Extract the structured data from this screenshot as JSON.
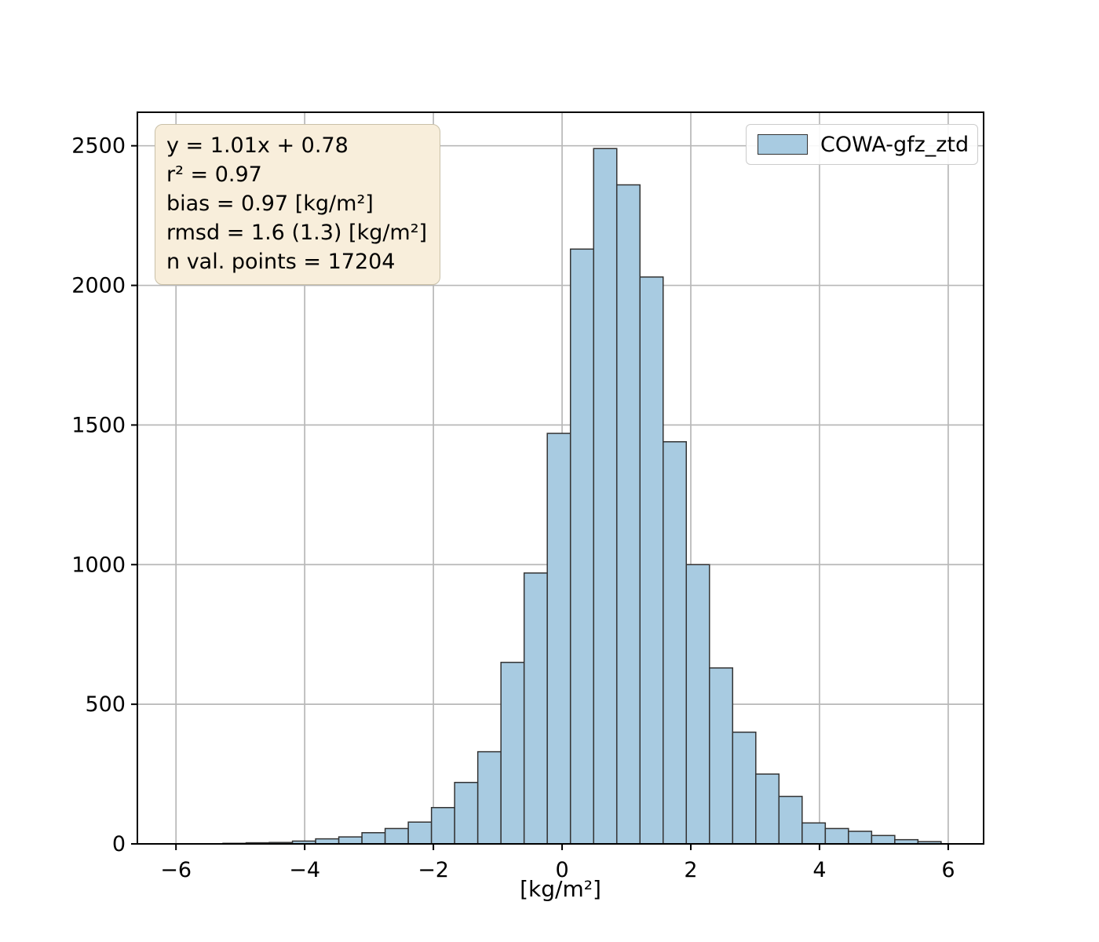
{
  "figure": {
    "background": "#ffffff"
  },
  "annotation": {
    "lines": [
      "y = 1.01x + 0.78",
      "r² = 0.97",
      "bias = 0.97 [kg/m²]",
      "rmsd = 1.6 (1.3) [kg/m²]",
      "n val. points = 17204"
    ]
  },
  "legend": {
    "label": "COWA-gfz_ztd"
  },
  "chart_data": {
    "type": "bar",
    "subtype": "histogram",
    "title": "",
    "xlabel": "[kg/m²]",
    "ylabel": "",
    "series_name": "COWA-gfz_ztd",
    "stats": {
      "fit_line": "y = 1.01x + 0.78",
      "r2": 0.97,
      "bias_kg_m2": 0.97,
      "rmsd_kg_m2": "1.6 (1.3)",
      "n_val_points": 17204
    },
    "bin_start": -5.27,
    "bin_width": 0.36,
    "counts": [
      2,
      4,
      5,
      10,
      18,
      25,
      40,
      55,
      78,
      130,
      220,
      330,
      650,
      970,
      1470,
      2130,
      2490,
      2360,
      2030,
      1440,
      1000,
      630,
      400,
      250,
      170,
      75,
      55,
      45,
      30,
      15,
      8
    ],
    "xlim": [
      -6.6,
      6.55
    ],
    "ylim": [
      0,
      2620
    ],
    "xtick_values": [
      -6,
      -4,
      -2,
      0,
      2,
      4,
      6
    ],
    "xtick_labels": [
      "−6",
      "−4",
      "−2",
      "0",
      "2",
      "4",
      "6"
    ],
    "ytick_values": [
      0,
      500,
      1000,
      1500,
      2000,
      2500
    ],
    "ytick_labels": [
      "0",
      "500",
      "1000",
      "1500",
      "2000",
      "2500"
    ],
    "grid": true,
    "legend_position": "upper right",
    "colors": {
      "bar_fill": "#a8cbe1",
      "bar_edge": "#333333",
      "grid": "#b8b8b8",
      "spine": "#000000",
      "annotation_bg": "#f8eedb",
      "annotation_border": "#c9c0a8",
      "legend_border": "#cccccc"
    }
  }
}
